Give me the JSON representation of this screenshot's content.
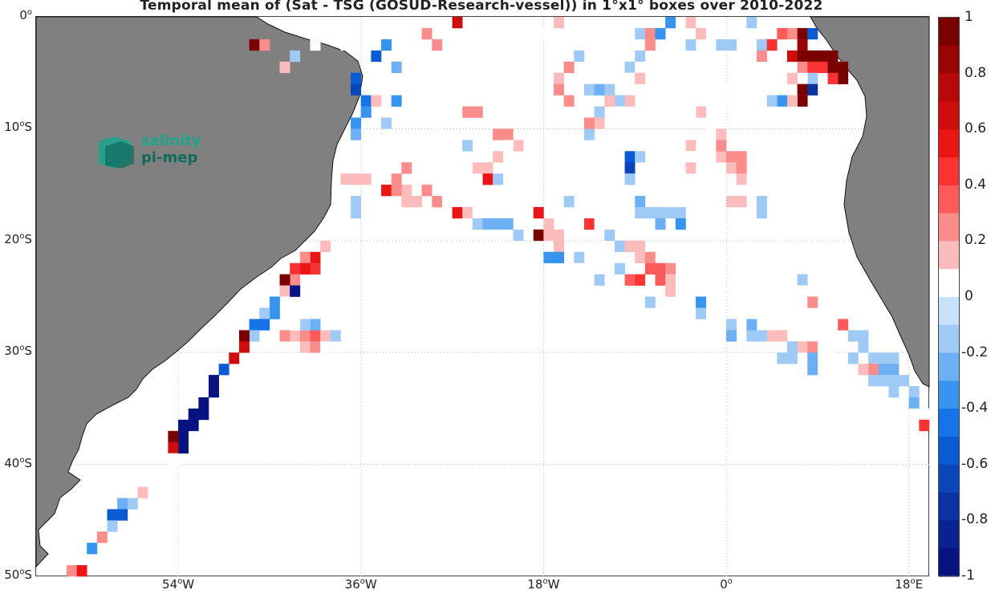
{
  "title": "Temporal mean of (Sat - TSG (GOSUD-Research-vessel)) in 1°x1° boxes over 2010-2022",
  "logo": {
    "line1": "salinity",
    "line2": "pi-mep"
  },
  "lat_ticks": [
    {
      "deg": "0",
      "suf": ""
    },
    {
      "deg": "10",
      "suf": "S"
    },
    {
      "deg": "20",
      "suf": "S"
    },
    {
      "deg": "30",
      "suf": "S"
    },
    {
      "deg": "40",
      "suf": "S"
    },
    {
      "deg": "50",
      "suf": "S"
    }
  ],
  "lon_ticks": [
    {
      "deg": "54",
      "suf": "W"
    },
    {
      "deg": "36",
      "suf": "W"
    },
    {
      "deg": "18",
      "suf": "W"
    },
    {
      "deg": "0",
      "suf": ""
    },
    {
      "deg": "18",
      "suf": "E"
    }
  ],
  "colorbar": {
    "ticks": [
      "1",
      "0.8",
      "0.6",
      "0.4",
      "0.2",
      "0",
      "-0.2",
      "-0.4",
      "-0.6",
      "-0.8",
      "-1"
    ],
    "colors": [
      "#7a0000",
      "#980505",
      "#b70808",
      "#cf0c0c",
      "#ea1515",
      "#fb3232",
      "#fd5a5a",
      "#fa8c8c",
      "#fdbcbc",
      "#ffffff",
      "#c8e1fb",
      "#9fcaf6",
      "#6cb0f3",
      "#3694ef",
      "#1474e6",
      "#0a5bd3",
      "#0b46b8",
      "#0a32a2",
      "#092191",
      "#071380"
    ],
    "range": [
      -1,
      1
    ]
  },
  "chart_data": {
    "type": "heatmap",
    "title": "Temporal mean of (Sat - TSG (GOSUD-Research-vessel)) in 1°x1° boxes over 2010-2022",
    "xlim": [
      -68,
      20
    ],
    "ylim": [
      -50,
      0
    ],
    "cells": [
      [
        -47,
        -2,
        0.9
      ],
      [
        -46,
        -2,
        0.3
      ],
      [
        -44,
        -4,
        0.2
      ],
      [
        -43,
        -3,
        -0.1
      ],
      [
        -41,
        -2,
        0.1
      ],
      [
        -38,
        -2,
        0.1
      ],
      [
        -37,
        -5,
        -0.5
      ],
      [
        -37,
        -6,
        -0.6
      ],
      [
        -36,
        -7,
        -0.4
      ],
      [
        -36,
        -8,
        -0.3
      ],
      [
        -37,
        -9,
        -0.3
      ],
      [
        -37,
        -10,
        -0.2
      ],
      [
        -35,
        -3,
        -0.5
      ],
      [
        -34,
        -2,
        -0.3
      ],
      [
        -33,
        -4,
        -0.2
      ],
      [
        -35,
        -7,
        0.2
      ],
      [
        -33,
        -7,
        -0.3
      ],
      [
        -34,
        -9,
        -0.1
      ],
      [
        -32,
        -1,
        0.1
      ],
      [
        -30,
        -1,
        0.3
      ],
      [
        -29,
        -2,
        0.3
      ],
      [
        -27,
        0,
        0.7
      ],
      [
        -19,
        -1,
        0.1
      ],
      [
        -17,
        0,
        0.2
      ],
      [
        -16,
        -2,
        0.1
      ],
      [
        -15,
        -3,
        -0.1
      ],
      [
        -16,
        -4,
        0.3
      ],
      [
        -17,
        -5,
        0.2
      ],
      [
        -17,
        -6,
        0.3
      ],
      [
        -16,
        -7,
        0.3
      ],
      [
        -15,
        -6,
        0.1
      ],
      [
        -14,
        -6,
        -0.1
      ],
      [
        -13,
        -6,
        -0.2
      ],
      [
        -12,
        -6,
        -0.1
      ],
      [
        -10,
        -4,
        -0.1
      ],
      [
        -10,
        -5,
        0.1
      ],
      [
        -10,
        -6,
        0.1
      ],
      [
        -9,
        -3,
        -0.1
      ],
      [
        -9,
        -4,
        0.1
      ],
      [
        -9,
        -5,
        0.2
      ],
      [
        -8,
        -2,
        0.3
      ],
      [
        -9,
        -1,
        -0.1
      ],
      [
        -8,
        -1,
        0.3
      ],
      [
        -7,
        -1,
        -0.3
      ],
      [
        -6,
        0,
        -0.3
      ],
      [
        -4,
        0,
        0.2
      ],
      [
        -3,
        -1,
        0.2
      ],
      [
        -5,
        -3,
        0.1
      ],
      [
        -4,
        -2,
        -0.1
      ],
      [
        -2,
        -2,
        0.1
      ],
      [
        -1,
        -2,
        -0.1
      ],
      [
        0,
        -2,
        -0.1
      ],
      [
        1,
        -1,
        0.1
      ],
      [
        2,
        0,
        -0.1
      ],
      [
        2,
        -2,
        0.1
      ],
      [
        3,
        -2,
        -0.1
      ],
      [
        3,
        -3,
        0.3
      ],
      [
        4,
        -2,
        0.5
      ],
      [
        5,
        -1,
        0.4
      ],
      [
        6,
        -1,
        0.3
      ],
      [
        7,
        -1,
        0.9
      ],
      [
        7,
        -2,
        0.8
      ],
      [
        6,
        -3,
        0.7
      ],
      [
        7,
        -3,
        0.9
      ],
      [
        8,
        -3,
        1.0
      ],
      [
        9,
        -3,
        1.0
      ],
      [
        10,
        -3,
        0.9
      ],
      [
        7,
        -4,
        0.3
      ],
      [
        8,
        -4,
        0.5
      ],
      [
        9,
        -4,
        0.5
      ],
      [
        10,
        -4,
        0.9
      ],
      [
        11,
        -4,
        1.0
      ],
      [
        11,
        -5,
        0.9
      ],
      [
        10,
        -5,
        0.5
      ],
      [
        8,
        -5,
        -0.1
      ],
      [
        7,
        -5,
        0.1
      ],
      [
        6,
        -5,
        0.2
      ],
      [
        7,
        -6,
        0.9
      ],
      [
        8,
        -6,
        -0.7
      ],
      [
        7,
        -7,
        0.9
      ],
      [
        5,
        -7,
        -0.3
      ],
      [
        4,
        -7,
        -0.1
      ],
      [
        6,
        -7,
        0.2
      ],
      [
        8,
        -1,
        -0.5
      ],
      [
        -10,
        -7,
        0.2
      ],
      [
        -11,
        -7,
        -0.1
      ],
      [
        -12,
        -7,
        0.2
      ],
      [
        -13,
        -8,
        -0.1
      ],
      [
        -13,
        -9,
        0.2
      ],
      [
        -11,
        -8,
        0.1
      ],
      [
        -14,
        -10,
        -0.1
      ],
      [
        -14,
        -9,
        0.3
      ],
      [
        -15,
        -11,
        0.1
      ],
      [
        -22,
        -5,
        0.1
      ],
      [
        -26,
        -8,
        0.3
      ],
      [
        -25,
        -8,
        0.3
      ],
      [
        -23,
        -10,
        0.3
      ],
      [
        -22,
        -10,
        0.3
      ],
      [
        -21,
        -11,
        0.2
      ],
      [
        -22,
        -11,
        0.1
      ],
      [
        -23,
        -12,
        0.2
      ],
      [
        -25,
        -13,
        0.2
      ],
      [
        -24,
        -13,
        0.2
      ],
      [
        -24,
        -14,
        0.6
      ],
      [
        -23,
        -14,
        -0.1
      ],
      [
        -26,
        -11,
        -0.1
      ],
      [
        -29,
        -10,
        0.1
      ],
      [
        -31,
        -11,
        0.1
      ],
      [
        -31,
        -12,
        0.1
      ],
      [
        -32,
        -13,
        0.3
      ],
      [
        -33,
        -14,
        0.3
      ],
      [
        -32,
        -15,
        0.2
      ],
      [
        -30,
        -15,
        0.3
      ],
      [
        -29,
        -16,
        0.3
      ],
      [
        -28,
        -16,
        0.1
      ],
      [
        -27,
        -17,
        0.6
      ],
      [
        -26,
        -17,
        0.2
      ],
      [
        -25,
        -17,
        0.1
      ],
      [
        -25,
        -18,
        -0.1
      ],
      [
        -24,
        -18,
        -0.2
      ],
      [
        -23,
        -18,
        -0.2
      ],
      [
        -22,
        -18,
        -0.2
      ],
      [
        -21,
        -19,
        -0.1
      ],
      [
        -19,
        -19,
        0.9
      ],
      [
        -18,
        -18,
        0.2
      ],
      [
        -18,
        -19,
        0.2
      ],
      [
        -20,
        -16,
        0.1
      ],
      [
        -19,
        -17,
        0.6
      ],
      [
        -17,
        -19,
        0.2
      ],
      [
        -17,
        -20,
        0.2
      ],
      [
        -18,
        -21,
        -0.3
      ],
      [
        -17,
        -21,
        -0.3
      ],
      [
        -15,
        -21,
        -0.1
      ],
      [
        -15,
        -22,
        0.1
      ],
      [
        -16,
        -16,
        -0.1
      ],
      [
        -14,
        -18,
        0.5
      ],
      [
        -13,
        -18,
        0.1
      ],
      [
        -12,
        -19,
        -0.1
      ],
      [
        -11,
        -20,
        -0.1
      ],
      [
        -10,
        -20,
        0.2
      ],
      [
        -9,
        -20,
        0.2
      ],
      [
        -9,
        -21,
        0.2
      ],
      [
        -8,
        -21,
        0.3
      ],
      [
        -8,
        -22,
        0.4
      ],
      [
        -7,
        -22,
        0.4
      ],
      [
        -7,
        -23,
        0.4
      ],
      [
        -6,
        -22,
        0.3
      ],
      [
        -6,
        -23,
        0.2
      ],
      [
        -6,
        -24,
        0.2
      ],
      [
        -9,
        -23,
        0.5
      ],
      [
        -10,
        -23,
        0.4
      ],
      [
        -11,
        -22,
        -0.1
      ],
      [
        -13,
        -23,
        -0.1
      ],
      [
        -8,
        -25,
        -0.1
      ],
      [
        -4,
        -24,
        0.1
      ],
      [
        -3,
        -24,
        0.1
      ],
      [
        -3,
        -25,
        -0.3
      ],
      [
        -3,
        -26,
        -0.1
      ],
      [
        -8,
        -17,
        -0.1
      ],
      [
        -7,
        -17,
        -0.1
      ],
      [
        -7,
        -18,
        -0.2
      ],
      [
        -6,
        -17,
        -0.1
      ],
      [
        -5,
        -17,
        -0.1
      ],
      [
        -5,
        -18,
        -0.3
      ],
      [
        -6,
        -16,
        0.1
      ],
      [
        -9,
        -16,
        -0.2
      ],
      [
        -9,
        -17,
        -0.1
      ],
      [
        -10,
        -12,
        -0.5
      ],
      [
        -10,
        -13,
        -0.6
      ],
      [
        -9,
        -12,
        -0.1
      ],
      [
        -10,
        -14,
        -0.1
      ],
      [
        -4,
        -11,
        0.2
      ],
      [
        -3,
        -12,
        0.1
      ],
      [
        -2,
        -12,
        0.1
      ],
      [
        -1,
        -12,
        0.2
      ],
      [
        0,
        -12,
        0.3
      ],
      [
        1,
        -12,
        0.3
      ],
      [
        -1,
        -11,
        0.3
      ],
      [
        -1,
        -10,
        0.2
      ],
      [
        -2,
        -9,
        0.1
      ],
      [
        0,
        -13,
        0.2
      ],
      [
        1,
        -13,
        0.3
      ],
      [
        1,
        -14,
        0.2
      ],
      [
        -2,
        -13,
        0.1
      ],
      [
        -4,
        -12,
        0.1
      ],
      [
        -4,
        -13,
        0.2
      ],
      [
        0,
        -16,
        0.2
      ],
      [
        1,
        -16,
        0.2
      ],
      [
        2,
        -15,
        0.1
      ],
      [
        3,
        -16,
        -0.1
      ],
      [
        3,
        -17,
        -0.1
      ],
      [
        -3,
        -8,
        0.2
      ],
      [
        -2,
        -7,
        0.1
      ],
      [
        -1,
        -7,
        0.1
      ],
      [
        -1,
        -6,
        0.1
      ],
      [
        -3,
        -5,
        0.1
      ],
      [
        -3,
        -6,
        0.1
      ],
      [
        -4,
        -8,
        0.1
      ],
      [
        5,
        -20,
        0.1
      ],
      [
        5,
        -22,
        0.1
      ],
      [
        6,
        -22,
        0.1
      ],
      [
        7,
        -23,
        -0.1
      ],
      [
        7,
        -24,
        0.1
      ],
      [
        8,
        -25,
        0.3
      ],
      [
        5,
        -28,
        0.2
      ],
      [
        4,
        -28,
        0.2
      ],
      [
        3,
        -28,
        -0.1
      ],
      [
        2,
        -28,
        -0.1
      ],
      [
        0,
        -27,
        -0.1
      ],
      [
        0,
        -28,
        -0.2
      ],
      [
        2,
        -27,
        -0.2
      ],
      [
        6,
        -29,
        -0.1
      ],
      [
        7,
        -29,
        0.2
      ],
      [
        8,
        -29,
        0.3
      ],
      [
        8,
        -30,
        -0.2
      ],
      [
        9,
        -29,
        0.1
      ],
      [
        10,
        -30,
        0.1
      ],
      [
        11,
        -27,
        0.4
      ],
      [
        12,
        -28,
        -0.1
      ],
      [
        13,
        -28,
        -0.1
      ],
      [
        13,
        -29,
        -0.1
      ],
      [
        14,
        -30,
        -0.1
      ],
      [
        14,
        -31,
        0.3
      ],
      [
        15,
        -30,
        -0.1
      ],
      [
        15,
        -31,
        -0.2
      ],
      [
        16,
        -30,
        -0.1
      ],
      [
        16,
        -31,
        -0.2
      ],
      [
        13,
        -31,
        0.2
      ],
      [
        12,
        -30,
        -0.1
      ],
      [
        14,
        -32,
        -0.1
      ],
      [
        15,
        -32,
        -0.1
      ],
      [
        16,
        -32,
        -0.1
      ],
      [
        16,
        -33,
        -0.1
      ],
      [
        17,
        -32,
        -0.1
      ],
      [
        18,
        -33,
        -0.1
      ],
      [
        18,
        -34,
        -0.2
      ],
      [
        18,
        -35,
        0.1
      ],
      [
        19,
        -35,
        0.1
      ],
      [
        19,
        -36,
        0.5
      ],
      [
        6,
        -30,
        -0.1
      ],
      [
        5,
        -30,
        -0.1
      ],
      [
        8,
        -31,
        -0.2
      ],
      [
        -38,
        -14,
        0.2
      ],
      [
        -37,
        -14,
        0.2
      ],
      [
        -36,
        -14,
        0.2
      ],
      [
        -38,
        -15,
        0.1
      ],
      [
        -37,
        -16,
        0.1
      ],
      [
        -37,
        -17,
        -0.1
      ],
      [
        -37,
        -16,
        -0.1
      ],
      [
        -34,
        -15,
        0.6
      ],
      [
        -33,
        -15,
        0.3
      ],
      [
        -32,
        -16,
        0.2
      ],
      [
        -31,
        -16,
        0.2
      ],
      [
        -35,
        -16,
        0.1
      ],
      [
        -40,
        -20,
        0.2
      ],
      [
        -41,
        -21,
        0.6
      ],
      [
        -41,
        -22,
        0.5
      ],
      [
        -42,
        -21,
        0.3
      ],
      [
        -42,
        -22,
        0.6
      ],
      [
        -43,
        -22,
        0.5
      ],
      [
        -43,
        -23,
        0.3
      ],
      [
        -44,
        -23,
        0.9
      ],
      [
        -44,
        -24,
        0.2
      ],
      [
        -44,
        -25,
        0.1
      ],
      [
        -43,
        -24,
        -0.9
      ],
      [
        -45,
        -25,
        -0.3
      ],
      [
        -45,
        -26,
        -0.3
      ],
      [
        -46,
        -26,
        -0.1
      ],
      [
        -46,
        -27,
        -0.4
      ],
      [
        -47,
        -27,
        -0.4
      ],
      [
        -47,
        -28,
        -0.1
      ],
      [
        -44,
        -27,
        0.1
      ],
      [
        -44,
        -28,
        0.3
      ],
      [
        -43,
        -28,
        0.2
      ],
      [
        -42,
        -28,
        0.3
      ],
      [
        -42,
        -29,
        0.2
      ],
      [
        -41,
        -28,
        0.4
      ],
      [
        -41,
        -29,
        0.3
      ],
      [
        -40,
        -28,
        0.2
      ],
      [
        -40,
        -29,
        0.1
      ],
      [
        -39,
        -28,
        -0.1
      ],
      [
        -41,
        -27,
        -0.2
      ],
      [
        -42,
        -27,
        -0.1
      ],
      [
        -43,
        -27,
        0.1
      ],
      [
        -48,
        -28,
        0.9
      ],
      [
        -48,
        -29,
        0.7
      ],
      [
        -49,
        -30,
        0.7
      ],
      [
        -50,
        -31,
        -0.5
      ],
      [
        -51,
        -32,
        -0.9
      ],
      [
        -51,
        -33,
        -0.9
      ],
      [
        -52,
        -34,
        -0.9
      ],
      [
        -52,
        -35,
        -0.9
      ],
      [
        -53,
        -35,
        -0.9
      ],
      [
        -53,
        -36,
        -0.9
      ],
      [
        -54,
        -36,
        -0.9
      ],
      [
        -54,
        -37,
        -0.9
      ],
      [
        -54,
        -38,
        -0.9
      ],
      [
        -55,
        -37,
        1.0
      ],
      [
        -55,
        -38,
        0.7
      ],
      [
        -55,
        -39,
        0.1
      ],
      [
        -57,
        -41,
        0.1
      ],
      [
        -58,
        -42,
        0.2
      ],
      [
        -59,
        -43,
        -0.1
      ],
      [
        -60,
        -43,
        -0.2
      ],
      [
        -60,
        -44,
        -0.5
      ],
      [
        -61,
        -44,
        -0.5
      ],
      [
        -61,
        -45,
        -0.1
      ],
      [
        -62,
        -46,
        0.3
      ],
      [
        -63,
        -47,
        -0.3
      ],
      [
        -65,
        -49,
        0.3
      ],
      [
        -64,
        -49,
        0.6
      ]
    ]
  }
}
